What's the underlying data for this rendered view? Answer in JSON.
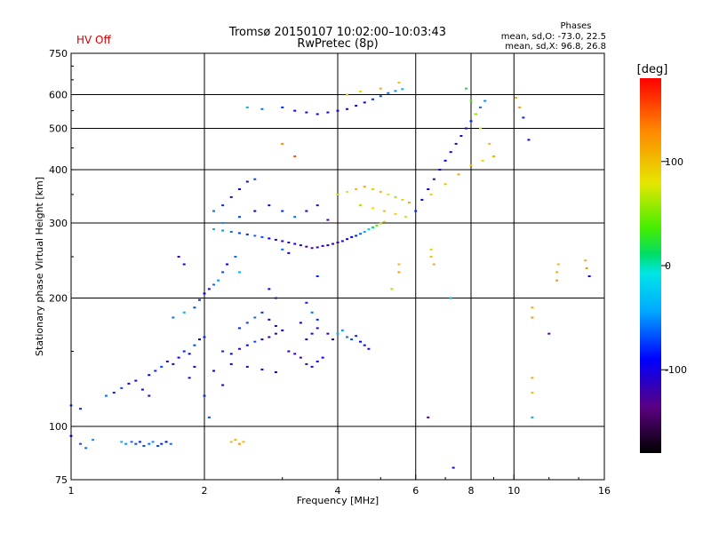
{
  "header": {
    "status_text": "HV Off",
    "status_color": "#d40000",
    "title_line1": "Tromsø 20150107 10:02:00–10:03:43",
    "title_line2": "RwPretec (8p)",
    "phases_title": "Phases",
    "phases_line1": "mean, sd,O: -73.0, 22.5",
    "phases_line2": "mean, sd,X:  96.8, 26.8"
  },
  "colorbar": {
    "label": "[deg]",
    "ticks": [
      {
        "value": 100,
        "label": "100"
      },
      {
        "value": 0,
        "label": "0"
      },
      {
        "value": -100,
        "label": "-100"
      }
    ],
    "range": [
      -180,
      180
    ]
  },
  "chart_data": {
    "type": "scatter",
    "title": "Tromsø 20150107 10:02:00–10:03:43",
    "subtitle": "RwPretec (8p)",
    "xlabel": "Frequency [MHz]",
    "ylabel": "Stationary phase Virtual Height [km]",
    "x_scale": "log",
    "y_scale": "log",
    "xlim": [
      1,
      16
    ],
    "ylim": [
      75,
      750
    ],
    "x_ticks": [
      {
        "value": 1,
        "label": "1"
      },
      {
        "value": 2,
        "label": "2"
      },
      {
        "value": 4,
        "label": "4"
      },
      {
        "value": 6,
        "label": "6"
      },
      {
        "value": 8,
        "label": "8"
      },
      {
        "value": 10,
        "label": "10"
      },
      {
        "value": 16,
        "label": "16"
      }
    ],
    "y_ticks": [
      {
        "value": 75,
        "label": "75"
      },
      {
        "value": 100,
        "label": "100"
      },
      {
        "value": 200,
        "label": "200"
      },
      {
        "value": 300,
        "label": "300"
      },
      {
        "value": 400,
        "label": "400"
      },
      {
        "value": 500,
        "label": "500"
      },
      {
        "value": 600,
        "label": "600"
      },
      {
        "value": 750,
        "label": "750"
      }
    ],
    "x_gridlines": [
      2,
      4,
      6,
      8,
      10
    ],
    "y_gridlines": [
      100,
      200,
      300,
      400,
      500,
      600
    ],
    "color_by": "phase [deg]",
    "points": [
      [
        1.0,
        95,
        -90
      ],
      [
        1.05,
        91,
        -70
      ],
      [
        1.08,
        89,
        -60
      ],
      [
        1.12,
        93,
        -50
      ],
      [
        1.0,
        112,
        -70
      ],
      [
        1.05,
        110,
        -80
      ],
      [
        1.3,
        92,
        -40
      ],
      [
        1.33,
        91,
        -50
      ],
      [
        1.37,
        92,
        -60
      ],
      [
        1.4,
        91,
        -70
      ],
      [
        1.43,
        92,
        -80
      ],
      [
        1.46,
        90,
        -70
      ],
      [
        1.5,
        91,
        -60
      ],
      [
        1.53,
        92,
        -50
      ],
      [
        1.57,
        90,
        -70
      ],
      [
        1.6,
        91,
        -80
      ],
      [
        1.64,
        92,
        -90
      ],
      [
        1.68,
        91,
        -60
      ],
      [
        2.3,
        92,
        100
      ],
      [
        2.35,
        93,
        110
      ],
      [
        2.4,
        91,
        120
      ],
      [
        2.45,
        92,
        105
      ],
      [
        1.2,
        118,
        -60
      ],
      [
        1.25,
        120,
        -80
      ],
      [
        1.3,
        123,
        -70
      ],
      [
        1.35,
        126,
        -90
      ],
      [
        1.4,
        128,
        -100
      ],
      [
        1.45,
        122,
        -110
      ],
      [
        1.5,
        118,
        -120
      ],
      [
        1.5,
        132,
        -90
      ],
      [
        1.55,
        135,
        -80
      ],
      [
        1.6,
        138,
        -70
      ],
      [
        1.65,
        142,
        -100
      ],
      [
        1.7,
        140,
        -110
      ],
      [
        1.75,
        145,
        -90
      ],
      [
        1.8,
        150,
        -80
      ],
      [
        1.85,
        148,
        -100
      ],
      [
        1.9,
        155,
        -70
      ],
      [
        1.95,
        160,
        -90
      ],
      [
        1.9,
        138,
        -100
      ],
      [
        1.85,
        130,
        -110
      ],
      [
        2.0,
        162,
        -80
      ],
      [
        1.7,
        180,
        -60
      ],
      [
        1.8,
        185,
        -40
      ],
      [
        1.9,
        190,
        -70
      ],
      [
        1.95,
        198,
        -80
      ],
      [
        2.0,
        205,
        -90
      ],
      [
        2.05,
        210,
        -100
      ],
      [
        2.1,
        215,
        -60
      ],
      [
        2.15,
        220,
        -50
      ],
      [
        2.2,
        230,
        -70
      ],
      [
        2.25,
        240,
        -90
      ],
      [
        2.2,
        150,
        -80
      ],
      [
        2.3,
        148,
        -100
      ],
      [
        2.4,
        152,
        -110
      ],
      [
        2.5,
        155,
        -90
      ],
      [
        2.6,
        158,
        -70
      ],
      [
        2.7,
        160,
        -100
      ],
      [
        2.8,
        162,
        -120
      ],
      [
        2.9,
        165,
        -110
      ],
      [
        3.0,
        168,
        -90
      ],
      [
        2.4,
        170,
        -80
      ],
      [
        2.5,
        175,
        -70
      ],
      [
        2.6,
        180,
        -60
      ],
      [
        2.7,
        185,
        -80
      ],
      [
        2.8,
        178,
        -100
      ],
      [
        2.9,
        172,
        -120
      ],
      [
        2.3,
        140,
        -90
      ],
      [
        2.5,
        138,
        -110
      ],
      [
        2.7,
        136,
        -100
      ],
      [
        2.9,
        134,
        -90
      ],
      [
        3.1,
        150,
        -110
      ],
      [
        3.2,
        148,
        -120
      ],
      [
        3.3,
        145,
        -130
      ],
      [
        3.4,
        140,
        -120
      ],
      [
        3.5,
        138,
        -110
      ],
      [
        3.6,
        142,
        -100
      ],
      [
        3.7,
        145,
        -90
      ],
      [
        3.4,
        160,
        -110
      ],
      [
        3.5,
        165,
        -100
      ],
      [
        3.6,
        170,
        -120
      ],
      [
        3.8,
        165,
        -110
      ],
      [
        3.9,
        160,
        -100
      ],
      [
        3.3,
        175,
        -90
      ],
      [
        3.6,
        178,
        -80
      ],
      [
        4.0,
        165,
        -40
      ],
      [
        4.1,
        168,
        -50
      ],
      [
        4.2,
        162,
        -60
      ],
      [
        4.3,
        160,
        -70
      ],
      [
        4.4,
        163,
        -80
      ],
      [
        4.5,
        158,
        -90
      ],
      [
        4.6,
        155,
        -100
      ],
      [
        4.7,
        152,
        -110
      ],
      [
        2.1,
        290,
        -40
      ],
      [
        2.2,
        288,
        -50
      ],
      [
        2.3,
        286,
        -60
      ],
      [
        2.4,
        284,
        -70
      ],
      [
        2.5,
        282,
        -80
      ],
      [
        2.6,
        280,
        -60
      ],
      [
        2.7,
        278,
        -70
      ],
      [
        2.8,
        276,
        -90
      ],
      [
        2.9,
        274,
        -100
      ],
      [
        3.0,
        272,
        -110
      ],
      [
        3.1,
        270,
        -120
      ],
      [
        3.2,
        268,
        -110
      ],
      [
        3.3,
        266,
        -100
      ],
      [
        3.4,
        264,
        -120
      ],
      [
        3.5,
        262,
        -130
      ],
      [
        3.6,
        263,
        -120
      ],
      [
        3.7,
        265,
        -110
      ],
      [
        3.8,
        266,
        -100
      ],
      [
        3.9,
        268,
        -110
      ],
      [
        4.0,
        270,
        -120
      ],
      [
        4.1,
        272,
        -110
      ],
      [
        4.2,
        275,
        -100
      ],
      [
        4.3,
        278,
        -90
      ],
      [
        4.4,
        280,
        -80
      ],
      [
        4.5,
        283,
        -60
      ],
      [
        4.6,
        286,
        -40
      ],
      [
        4.7,
        290,
        -20
      ],
      [
        4.8,
        293,
        10
      ],
      [
        4.9,
        296,
        40
      ],
      [
        5.0,
        299,
        70
      ],
      [
        5.1,
        302,
        90
      ],
      [
        2.1,
        320,
        -60
      ],
      [
        2.2,
        330,
        -80
      ],
      [
        2.3,
        345,
        -100
      ],
      [
        2.4,
        360,
        -90
      ],
      [
        2.5,
        375,
        -110
      ],
      [
        2.6,
        380,
        -70
      ],
      [
        2.2,
        300,
        -50
      ],
      [
        2.4,
        310,
        -70
      ],
      [
        2.6,
        320,
        -90
      ],
      [
        2.8,
        330,
        -110
      ],
      [
        3.0,
        320,
        -80
      ],
      [
        3.2,
        310,
        -60
      ],
      [
        3.4,
        320,
        -100
      ],
      [
        3.6,
        330,
        -120
      ],
      [
        4.0,
        350,
        60
      ],
      [
        4.2,
        355,
        80
      ],
      [
        4.4,
        360,
        100
      ],
      [
        4.6,
        365,
        110
      ],
      [
        4.8,
        360,
        90
      ],
      [
        5.0,
        355,
        100
      ],
      [
        5.2,
        350,
        80
      ],
      [
        5.4,
        345,
        60
      ],
      [
        5.6,
        340,
        90
      ],
      [
        5.8,
        335,
        110
      ],
      [
        4.5,
        330,
        60
      ],
      [
        4.8,
        325,
        80
      ],
      [
        5.1,
        320,
        100
      ],
      [
        5.4,
        315,
        90
      ],
      [
        5.7,
        310,
        70
      ],
      [
        6.0,
        320,
        -80
      ],
      [
        6.2,
        340,
        -90
      ],
      [
        6.4,
        360,
        -100
      ],
      [
        6.6,
        380,
        -110
      ],
      [
        6.8,
        400,
        -100
      ],
      [
        7.0,
        420,
        -90
      ],
      [
        7.2,
        440,
        -100
      ],
      [
        7.4,
        460,
        -110
      ],
      [
        7.6,
        480,
        -100
      ],
      [
        7.8,
        500,
        -90
      ],
      [
        8.0,
        520,
        -80
      ],
      [
        8.2,
        540,
        -70
      ],
      [
        8.4,
        560,
        -60
      ],
      [
        8.6,
        580,
        -50
      ],
      [
        6.5,
        350,
        90
      ],
      [
        7.0,
        370,
        100
      ],
      [
        7.5,
        390,
        110
      ],
      [
        8.0,
        410,
        100
      ],
      [
        8.5,
        420,
        90
      ],
      [
        9.0,
        430,
        110
      ],
      [
        8.8,
        460,
        100
      ],
      [
        8.4,
        500,
        80
      ],
      [
        8.2,
        540,
        60
      ],
      [
        8.0,
        580,
        40
      ],
      [
        7.8,
        620,
        20
      ],
      [
        2.5,
        560,
        -40
      ],
      [
        2.7,
        555,
        -60
      ],
      [
        3.0,
        560,
        -80
      ],
      [
        3.2,
        550,
        -100
      ],
      [
        3.4,
        545,
        -110
      ],
      [
        3.6,
        540,
        -100
      ],
      [
        3.8,
        545,
        -110
      ],
      [
        4.0,
        550,
        -100
      ],
      [
        4.2,
        555,
        -90
      ],
      [
        4.4,
        565,
        -100
      ],
      [
        4.6,
        575,
        -90
      ],
      [
        4.8,
        585,
        -80
      ],
      [
        5.0,
        595,
        -70
      ],
      [
        5.2,
        605,
        -60
      ],
      [
        5.4,
        612,
        -50
      ],
      [
        5.6,
        618,
        -40
      ],
      [
        4.2,
        600,
        100
      ],
      [
        4.5,
        610,
        90
      ],
      [
        5.0,
        620,
        110
      ],
      [
        5.5,
        640,
        100
      ],
      [
        10.1,
        590,
        110
      ],
      [
        10.3,
        560,
        120
      ],
      [
        10.8,
        470,
        -100
      ],
      [
        10.5,
        530,
        -80
      ],
      [
        11.0,
        190,
        110
      ],
      [
        11.0,
        180,
        120
      ],
      [
        11.0,
        130,
        110
      ],
      [
        11.0,
        120,
        100
      ],
      [
        11.0,
        105,
        -40
      ],
      [
        12.0,
        165,
        -130
      ],
      [
        6.5,
        260,
        90
      ],
      [
        6.5,
        250,
        100
      ],
      [
        6.6,
        240,
        110
      ],
      [
        7.2,
        200,
        -40
      ],
      [
        6.4,
        105,
        -130
      ],
      [
        7.3,
        80,
        -120
      ],
      [
        12.5,
        230,
        110
      ],
      [
        12.5,
        220,
        120
      ],
      [
        12.6,
        240,
        100
      ],
      [
        14.5,
        245,
        110
      ],
      [
        14.6,
        235,
        120
      ],
      [
        14.8,
        225,
        -100
      ],
      [
        1.75,
        250,
        -120
      ],
      [
        1.8,
        240,
        -100
      ],
      [
        2.35,
        250,
        -60
      ],
      [
        2.4,
        230,
        -40
      ],
      [
        2.8,
        210,
        -100
      ],
      [
        2.9,
        200,
        -110
      ],
      [
        3.4,
        195,
        -80
      ],
      [
        3.5,
        185,
        -60
      ],
      [
        2.1,
        135,
        -90
      ],
      [
        2.2,
        125,
        -100
      ],
      [
        2.0,
        118,
        -80
      ],
      [
        2.05,
        105,
        -70
      ],
      [
        3.0,
        260,
        -60
      ],
      [
        3.1,
        255,
        -90
      ],
      [
        5.5,
        240,
        100
      ],
      [
        5.5,
        230,
        120
      ],
      [
        3.8,
        305,
        -130
      ],
      [
        5.3,
        210,
        60
      ],
      [
        3.6,
        225,
        -80
      ],
      [
        3.2,
        430,
        150
      ],
      [
        3.0,
        460,
        130
      ]
    ]
  }
}
